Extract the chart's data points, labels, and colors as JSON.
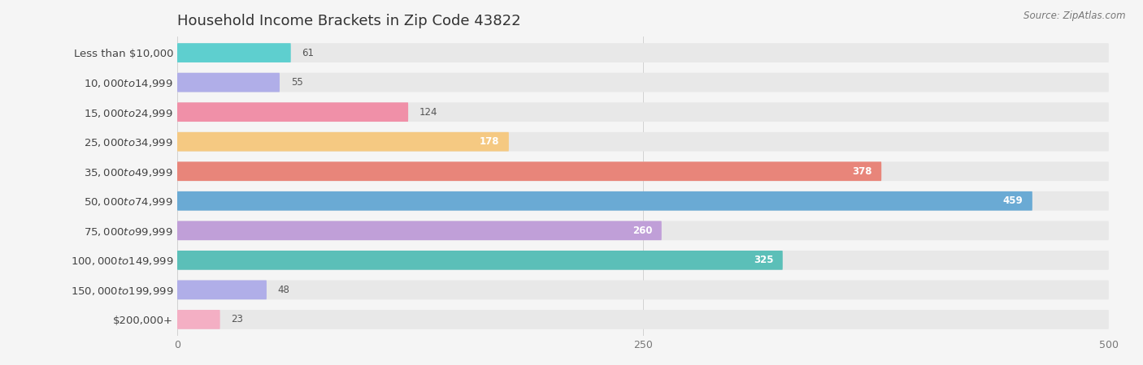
{
  "title": "Household Income Brackets in Zip Code 43822",
  "source": "Source: ZipAtlas.com",
  "categories": [
    "Less than $10,000",
    "$10,000 to $14,999",
    "$15,000 to $24,999",
    "$25,000 to $34,999",
    "$35,000 to $49,999",
    "$50,000 to $74,999",
    "$75,000 to $99,999",
    "$100,000 to $149,999",
    "$150,000 to $199,999",
    "$200,000+"
  ],
  "values": [
    61,
    55,
    124,
    178,
    378,
    459,
    260,
    325,
    48,
    23
  ],
  "colors": [
    "#5ecfcf",
    "#b0aee8",
    "#f090a8",
    "#f5c982",
    "#e8857a",
    "#6aaad4",
    "#c09fd8",
    "#5bbfb8",
    "#b0aee8",
    "#f4afc4"
  ],
  "xlim": [
    0,
    500
  ],
  "xticks": [
    0,
    250,
    500
  ],
  "background_color": "#f5f5f5",
  "bar_background_color": "#e8e8e8",
  "title_fontsize": 13,
  "label_fontsize": 9.5,
  "value_fontsize": 8.5,
  "bar_height": 0.65,
  "label_text_color": "#444444",
  "source_color": "#777777",
  "value_inside_color": "#ffffff",
  "value_outside_color": "#555555",
  "inside_threshold": 150
}
